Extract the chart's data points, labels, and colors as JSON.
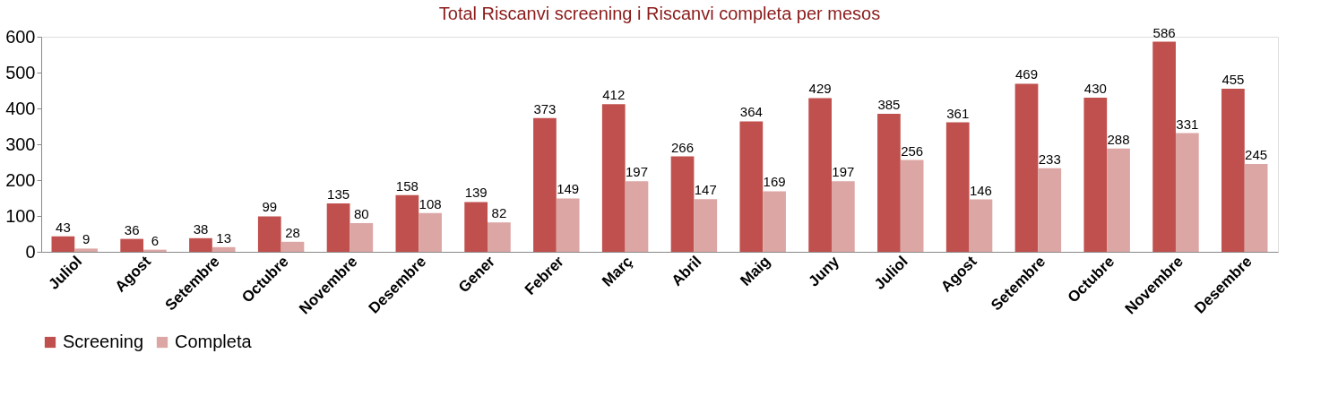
{
  "chart_data": {
    "type": "bar",
    "title": "Total Riscanvi screening i Riscanvi completa per mesos",
    "categories": [
      "Juliol",
      "Agost",
      "Setembre",
      "Octubre",
      "Novembre",
      "Desembre",
      "Gener",
      "Febrer",
      "Març",
      "Abril",
      "Maig",
      "Juny",
      "Juliol",
      "Agost",
      "Setembre",
      "Octubre",
      "Novembre",
      "Desembre"
    ],
    "series": [
      {
        "name": "Screening",
        "color": "#c0504d",
        "values": [
          43,
          36,
          38,
          99,
          135,
          158,
          139,
          373,
          412,
          266,
          364,
          429,
          385,
          361,
          469,
          430,
          586,
          455
        ]
      },
      {
        "name": "Completa",
        "color": "#dca6a4",
        "values": [
          9,
          6,
          13,
          28,
          80,
          108,
          82,
          149,
          197,
          147,
          169,
          197,
          256,
          146,
          233,
          288,
          331,
          245
        ]
      }
    ],
    "ylim": [
      0,
      600
    ],
    "yticks": [
      0,
      100,
      200,
      300,
      400,
      500,
      600
    ],
    "grid": false,
    "legend": "bottom",
    "data_labels": true
  }
}
